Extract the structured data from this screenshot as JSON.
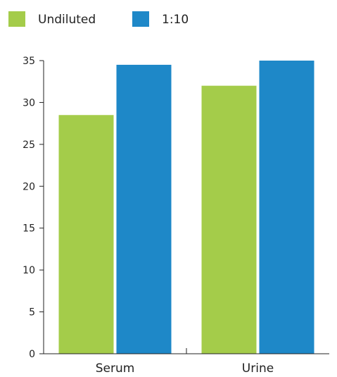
{
  "chart_data": {
    "type": "bar",
    "title": "",
    "xlabel": "",
    "ylabel": "",
    "categories": [
      "Serum",
      "Urine"
    ],
    "series": [
      {
        "name": "Undiluted",
        "color": "#a4cc4a",
        "values": [
          28.5,
          32
        ]
      },
      {
        "name": "1:10",
        "color": "#1e88c8",
        "values": [
          34.5,
          35
        ]
      }
    ],
    "ylim": [
      0,
      35
    ],
    "yticks": [
      0,
      5,
      10,
      15,
      20,
      25,
      30,
      35
    ],
    "legend_position": "top-left",
    "grid": false
  }
}
